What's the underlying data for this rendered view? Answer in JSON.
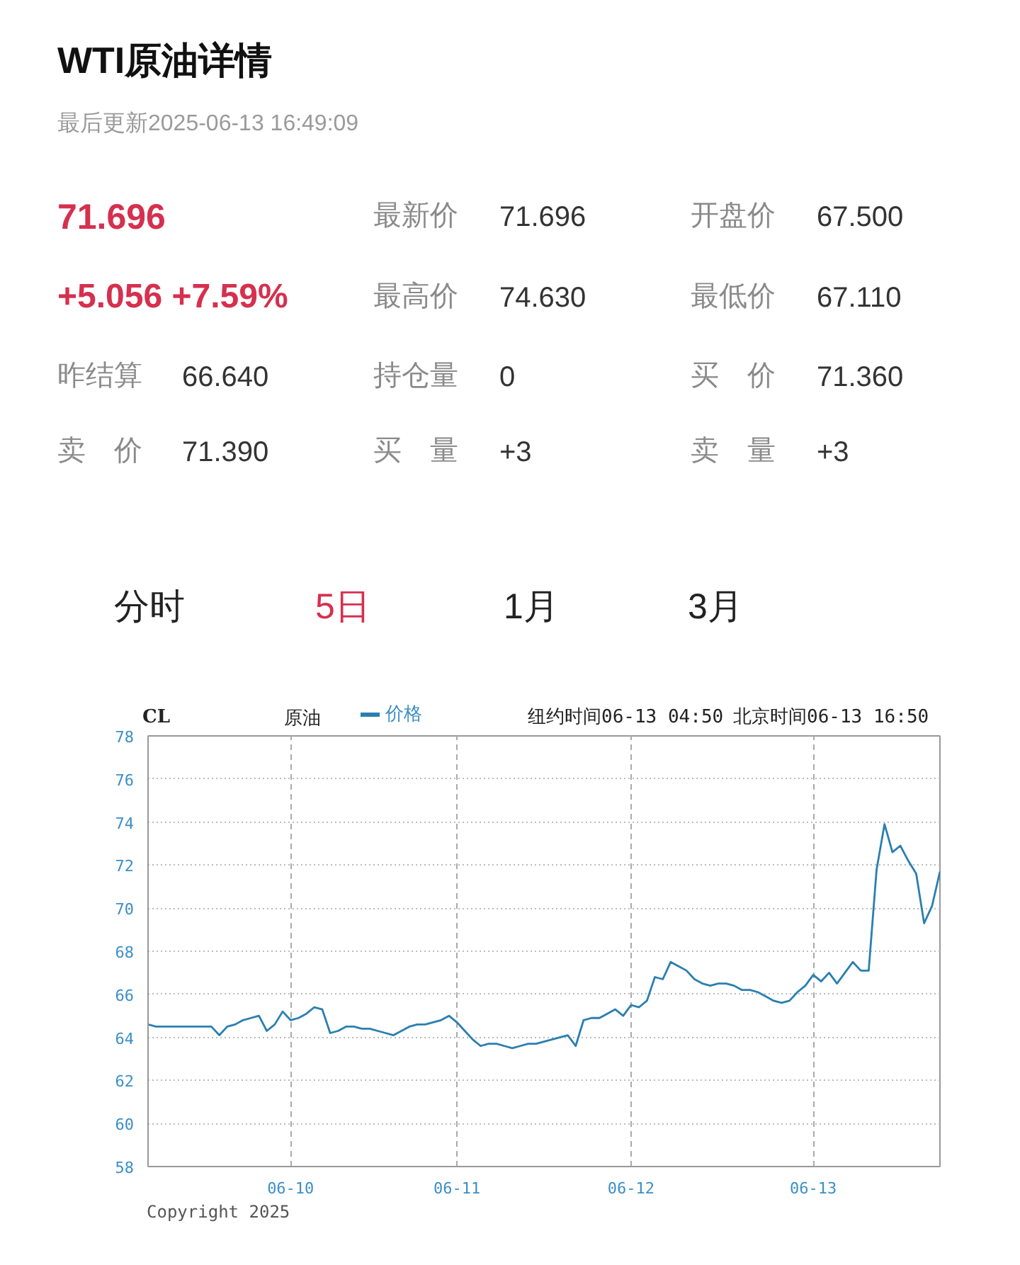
{
  "chart_data": [
    {
      "type": "other",
      "title": "WTI原油详情",
      "subtitle": "最后更新2025-06-13 16:49:09",
      "annotations": [
        "71.696",
        "+5.056 +7.59%",
        "最新价",
        "71.696",
        "开盘价",
        "67.500",
        "最高价",
        "74.630",
        "最低价",
        "67.110",
        "昨结算",
        "66.640",
        "持仓量",
        "0",
        "买　价",
        "71.360",
        "卖　价",
        "71.390",
        "买　量",
        "+3",
        "卖　量",
        "+3",
        "分时",
        "5日",
        "1月",
        "3月"
      ]
    },
    {
      "type": "line",
      "title": "CL",
      "subtitle": "原油",
      "categories": [
        null,
        null,
        null,
        null,
        null,
        null,
        null,
        null,
        null,
        null,
        null,
        null,
        null,
        null,
        null,
        null,
        null,
        null,
        "06-10",
        null,
        null,
        null,
        null,
        null,
        null,
        null,
        null,
        null,
        null,
        null,
        null,
        null,
        null,
        null,
        null,
        null,
        null,
        null,
        null,
        "06-11",
        null,
        null,
        null,
        null,
        null,
        null,
        null,
        null,
        null,
        null,
        null,
        null,
        null,
        null,
        null,
        null,
        null,
        null,
        null,
        null,
        null,
        "06-12",
        null,
        null,
        null,
        null,
        null,
        null,
        null,
        null,
        null,
        null,
        null,
        null,
        null,
        null,
        null,
        null,
        null,
        null,
        null,
        null,
        null,
        null,
        "06-13",
        null,
        null,
        null,
        null,
        null,
        null,
        null,
        null,
        null,
        null,
        null,
        null,
        null,
        null,
        null,
        null
      ],
      "series": [
        {
          "name": "价格",
          "color": "#2a7fb0",
          "values": [
            64.6,
            64.5,
            64.5,
            64.5,
            64.5,
            64.5,
            64.5,
            64.5,
            64.5,
            64.1,
            64.5,
            64.6,
            64.8,
            64.9,
            65.0,
            64.3,
            64.6,
            65.2,
            64.8,
            64.9,
            65.1,
            65.4,
            65.3,
            64.2,
            64.3,
            64.5,
            64.5,
            64.4,
            64.4,
            64.3,
            64.2,
            64.1,
            64.3,
            64.5,
            64.6,
            64.6,
            64.7,
            64.8,
            65.0,
            64.7,
            64.3,
            63.9,
            63.6,
            63.7,
            63.7,
            63.6,
            63.5,
            63.6,
            63.7,
            63.7,
            63.8,
            63.9,
            64.0,
            64.1,
            63.6,
            64.8,
            64.9,
            64.9,
            65.1,
            65.3,
            65.0,
            65.5,
            65.4,
            65.7,
            66.8,
            66.7,
            67.5,
            67.3,
            67.1,
            66.7,
            66.5,
            66.4,
            66.5,
            66.5,
            66.4,
            66.2,
            66.2,
            66.1,
            65.9,
            65.7,
            65.6,
            65.7,
            66.1,
            66.4,
            66.9,
            66.6,
            67.0,
            66.5,
            67.0,
            67.5,
            67.1,
            67.1,
            71.8,
            73.9,
            72.6,
            72.9,
            72.2,
            71.6,
            69.3,
            70.1,
            71.7
          ]
        }
      ],
      "ylim": [
        58,
        78
      ],
      "yticks": [
        58,
        60,
        62,
        64,
        66,
        68,
        70,
        72,
        74,
        76,
        78
      ],
      "grid": true,
      "legend": "top",
      "annotations": [
        "纽约时间06-13 04:50",
        "北京时间06-13 16:50",
        "Copyright 2025"
      ]
    }
  ]
}
